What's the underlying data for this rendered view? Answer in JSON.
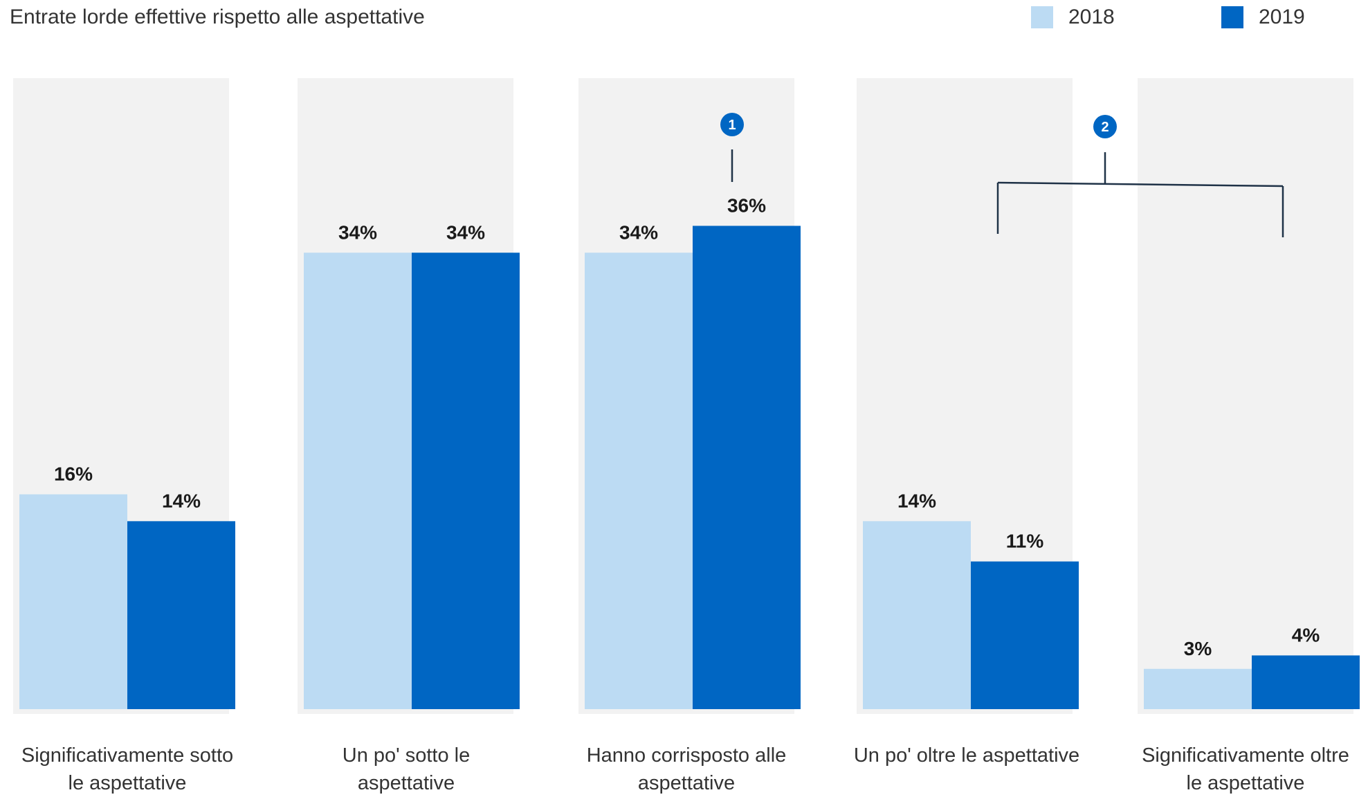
{
  "chart_data": {
    "type": "bar",
    "title": "Entrate lorde effettive rispetto alle aspettative",
    "categories": [
      "Significativamente sotto le aspettative",
      "Un po' sotto le aspettative",
      "Hanno corrisposto alle aspettative",
      "Un po' oltre le aspettative",
      "Significativamente oltre le aspettative"
    ],
    "series": [
      {
        "name": "2018",
        "values": [
          16,
          34,
          34,
          14,
          3
        ],
        "labels": [
          "16%",
          "34%",
          "34%",
          "14%",
          "3%"
        ],
        "color": "#bcdbf3"
      },
      {
        "name": "2019",
        "values": [
          14,
          34,
          36,
          11,
          4
        ],
        "labels": [
          "14%",
          "34%",
          "36%",
          "11%",
          "4%"
        ],
        "color": "#0066c3"
      }
    ],
    "ylim": [
      0,
      47
    ],
    "grid": false,
    "legend_position": "top-right",
    "background_panel_color": "#f2f2f2",
    "annotations": [
      {
        "badge": "1",
        "target_categories": [
          2
        ]
      },
      {
        "badge": "2",
        "target_categories": [
          3,
          4
        ]
      }
    ],
    "badge_color": "#0066c3",
    "bracket_color": "#1f3247"
  }
}
